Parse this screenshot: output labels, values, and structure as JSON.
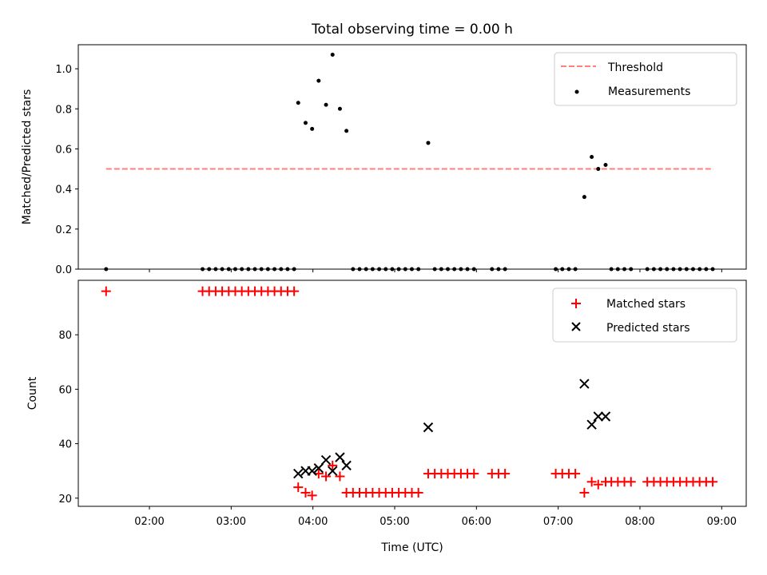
{
  "chart_data": {
    "title": "Total observing time = 0.00 h",
    "x_tick_labels": [
      "02:00",
      "03:00",
      "04:00",
      "05:00",
      "06:00",
      "07:00",
      "08:00",
      "09:00"
    ],
    "x_tick_hours": [
      2,
      3,
      4,
      5,
      6,
      7,
      8,
      9
    ],
    "xlabel": "Time (UTC)",
    "xlim_hours": [
      1.13,
      9.3
    ],
    "top": {
      "type": "scatter",
      "ylabel": "Matched/Predicted stars",
      "ylim": [
        0,
        1.12
      ],
      "yticks": [
        0.0,
        0.2,
        0.4,
        0.6,
        0.8,
        1.0
      ],
      "ytick_labels": [
        "0.0",
        "0.2",
        "0.4",
        "0.6",
        "0.8",
        "1.0"
      ],
      "legend_position": "top-right",
      "threshold": {
        "name": "Threshold",
        "value": 0.5,
        "x_start": 1.47,
        "x_end": 8.9,
        "color": "#ff7f7f"
      },
      "measurements": {
        "name": "Measurements",
        "color": "#000000",
        "points": [
          [
            1.47,
            0
          ],
          [
            2.65,
            0
          ],
          [
            2.73,
            0
          ],
          [
            2.81,
            0
          ],
          [
            2.89,
            0
          ],
          [
            2.97,
            0
          ],
          [
            3.05,
            0
          ],
          [
            3.13,
            0
          ],
          [
            3.21,
            0
          ],
          [
            3.29,
            0
          ],
          [
            3.37,
            0
          ],
          [
            3.45,
            0
          ],
          [
            3.53,
            0
          ],
          [
            3.61,
            0
          ],
          [
            3.69,
            0
          ],
          [
            3.77,
            0
          ],
          [
            3.82,
            0.83
          ],
          [
            3.91,
            0.73
          ],
          [
            3.99,
            0.7
          ],
          [
            4.07,
            0.94
          ],
          [
            4.16,
            0.82
          ],
          [
            4.24,
            1.07
          ],
          [
            4.33,
            0.8
          ],
          [
            4.41,
            0.69
          ],
          [
            4.49,
            0
          ],
          [
            4.57,
            0
          ],
          [
            4.65,
            0
          ],
          [
            4.73,
            0
          ],
          [
            4.81,
            0
          ],
          [
            4.89,
            0
          ],
          [
            4.97,
            0
          ],
          [
            5.05,
            0
          ],
          [
            5.13,
            0
          ],
          [
            5.21,
            0
          ],
          [
            5.29,
            0
          ],
          [
            5.41,
            0.63
          ],
          [
            5.49,
            0
          ],
          [
            5.57,
            0
          ],
          [
            5.65,
            0
          ],
          [
            5.73,
            0
          ],
          [
            5.81,
            0
          ],
          [
            5.89,
            0
          ],
          [
            5.97,
            0
          ],
          [
            6.19,
            0
          ],
          [
            6.27,
            0
          ],
          [
            6.35,
            0
          ],
          [
            6.97,
            0
          ],
          [
            7.05,
            0
          ],
          [
            7.13,
            0
          ],
          [
            7.21,
            0
          ],
          [
            7.32,
            0.36
          ],
          [
            7.41,
            0.56
          ],
          [
            7.49,
            0.5
          ],
          [
            7.58,
            0.52
          ],
          [
            7.65,
            0
          ],
          [
            7.73,
            0
          ],
          [
            7.81,
            0
          ],
          [
            7.89,
            0
          ],
          [
            8.09,
            0
          ],
          [
            8.17,
            0
          ],
          [
            8.25,
            0
          ],
          [
            8.33,
            0
          ],
          [
            8.41,
            0
          ],
          [
            8.49,
            0
          ],
          [
            8.57,
            0
          ],
          [
            8.65,
            0
          ],
          [
            8.73,
            0
          ],
          [
            8.81,
            0
          ],
          [
            8.89,
            0
          ]
        ]
      }
    },
    "bottom": {
      "type": "scatter",
      "ylabel": "Count",
      "ylim": [
        17,
        100
      ],
      "yticks": [
        20,
        40,
        60,
        80
      ],
      "ytick_labels": [
        "20",
        "40",
        "60",
        "80"
      ],
      "legend_position": "top-right",
      "matched": {
        "name": "Matched stars",
        "color": "#ff0000",
        "points": [
          [
            1.47,
            96
          ],
          [
            2.65,
            96
          ],
          [
            2.73,
            96
          ],
          [
            2.81,
            96
          ],
          [
            2.89,
            96
          ],
          [
            2.97,
            96
          ],
          [
            3.05,
            96
          ],
          [
            3.13,
            96
          ],
          [
            3.21,
            96
          ],
          [
            3.29,
            96
          ],
          [
            3.37,
            96
          ],
          [
            3.45,
            96
          ],
          [
            3.53,
            96
          ],
          [
            3.61,
            96
          ],
          [
            3.69,
            96
          ],
          [
            3.77,
            96
          ],
          [
            3.82,
            24
          ],
          [
            3.91,
            22
          ],
          [
            3.99,
            21
          ],
          [
            4.07,
            29
          ],
          [
            4.16,
            28
          ],
          [
            4.24,
            32
          ],
          [
            4.33,
            28
          ],
          [
            4.41,
            22
          ],
          [
            4.49,
            22
          ],
          [
            4.57,
            22
          ],
          [
            4.65,
            22
          ],
          [
            4.73,
            22
          ],
          [
            4.81,
            22
          ],
          [
            4.89,
            22
          ],
          [
            4.97,
            22
          ],
          [
            5.05,
            22
          ],
          [
            5.13,
            22
          ],
          [
            5.21,
            22
          ],
          [
            5.29,
            22
          ],
          [
            5.41,
            29
          ],
          [
            5.49,
            29
          ],
          [
            5.57,
            29
          ],
          [
            5.65,
            29
          ],
          [
            5.73,
            29
          ],
          [
            5.81,
            29
          ],
          [
            5.89,
            29
          ],
          [
            5.97,
            29
          ],
          [
            6.19,
            29
          ],
          [
            6.27,
            29
          ],
          [
            6.35,
            29
          ],
          [
            6.97,
            29
          ],
          [
            7.05,
            29
          ],
          [
            7.13,
            29
          ],
          [
            7.21,
            29
          ],
          [
            7.32,
            22
          ],
          [
            7.41,
            26
          ],
          [
            7.49,
            25
          ],
          [
            7.58,
            26
          ],
          [
            7.65,
            26
          ],
          [
            7.73,
            26
          ],
          [
            7.81,
            26
          ],
          [
            7.89,
            26
          ],
          [
            8.09,
            26
          ],
          [
            8.17,
            26
          ],
          [
            8.25,
            26
          ],
          [
            8.33,
            26
          ],
          [
            8.41,
            26
          ],
          [
            8.49,
            26
          ],
          [
            8.57,
            26
          ],
          [
            8.65,
            26
          ],
          [
            8.73,
            26
          ],
          [
            8.81,
            26
          ],
          [
            8.89,
            26
          ]
        ]
      },
      "predicted": {
        "name": "Predicted stars",
        "color": "#000000",
        "points": [
          [
            3.82,
            29
          ],
          [
            3.91,
            30
          ],
          [
            3.99,
            30
          ],
          [
            4.07,
            31
          ],
          [
            4.16,
            34
          ],
          [
            4.24,
            30
          ],
          [
            4.33,
            35
          ],
          [
            4.41,
            32
          ],
          [
            5.41,
            46
          ],
          [
            7.32,
            62
          ],
          [
            7.41,
            47
          ],
          [
            7.49,
            50
          ],
          [
            7.58,
            50
          ]
        ]
      }
    }
  }
}
